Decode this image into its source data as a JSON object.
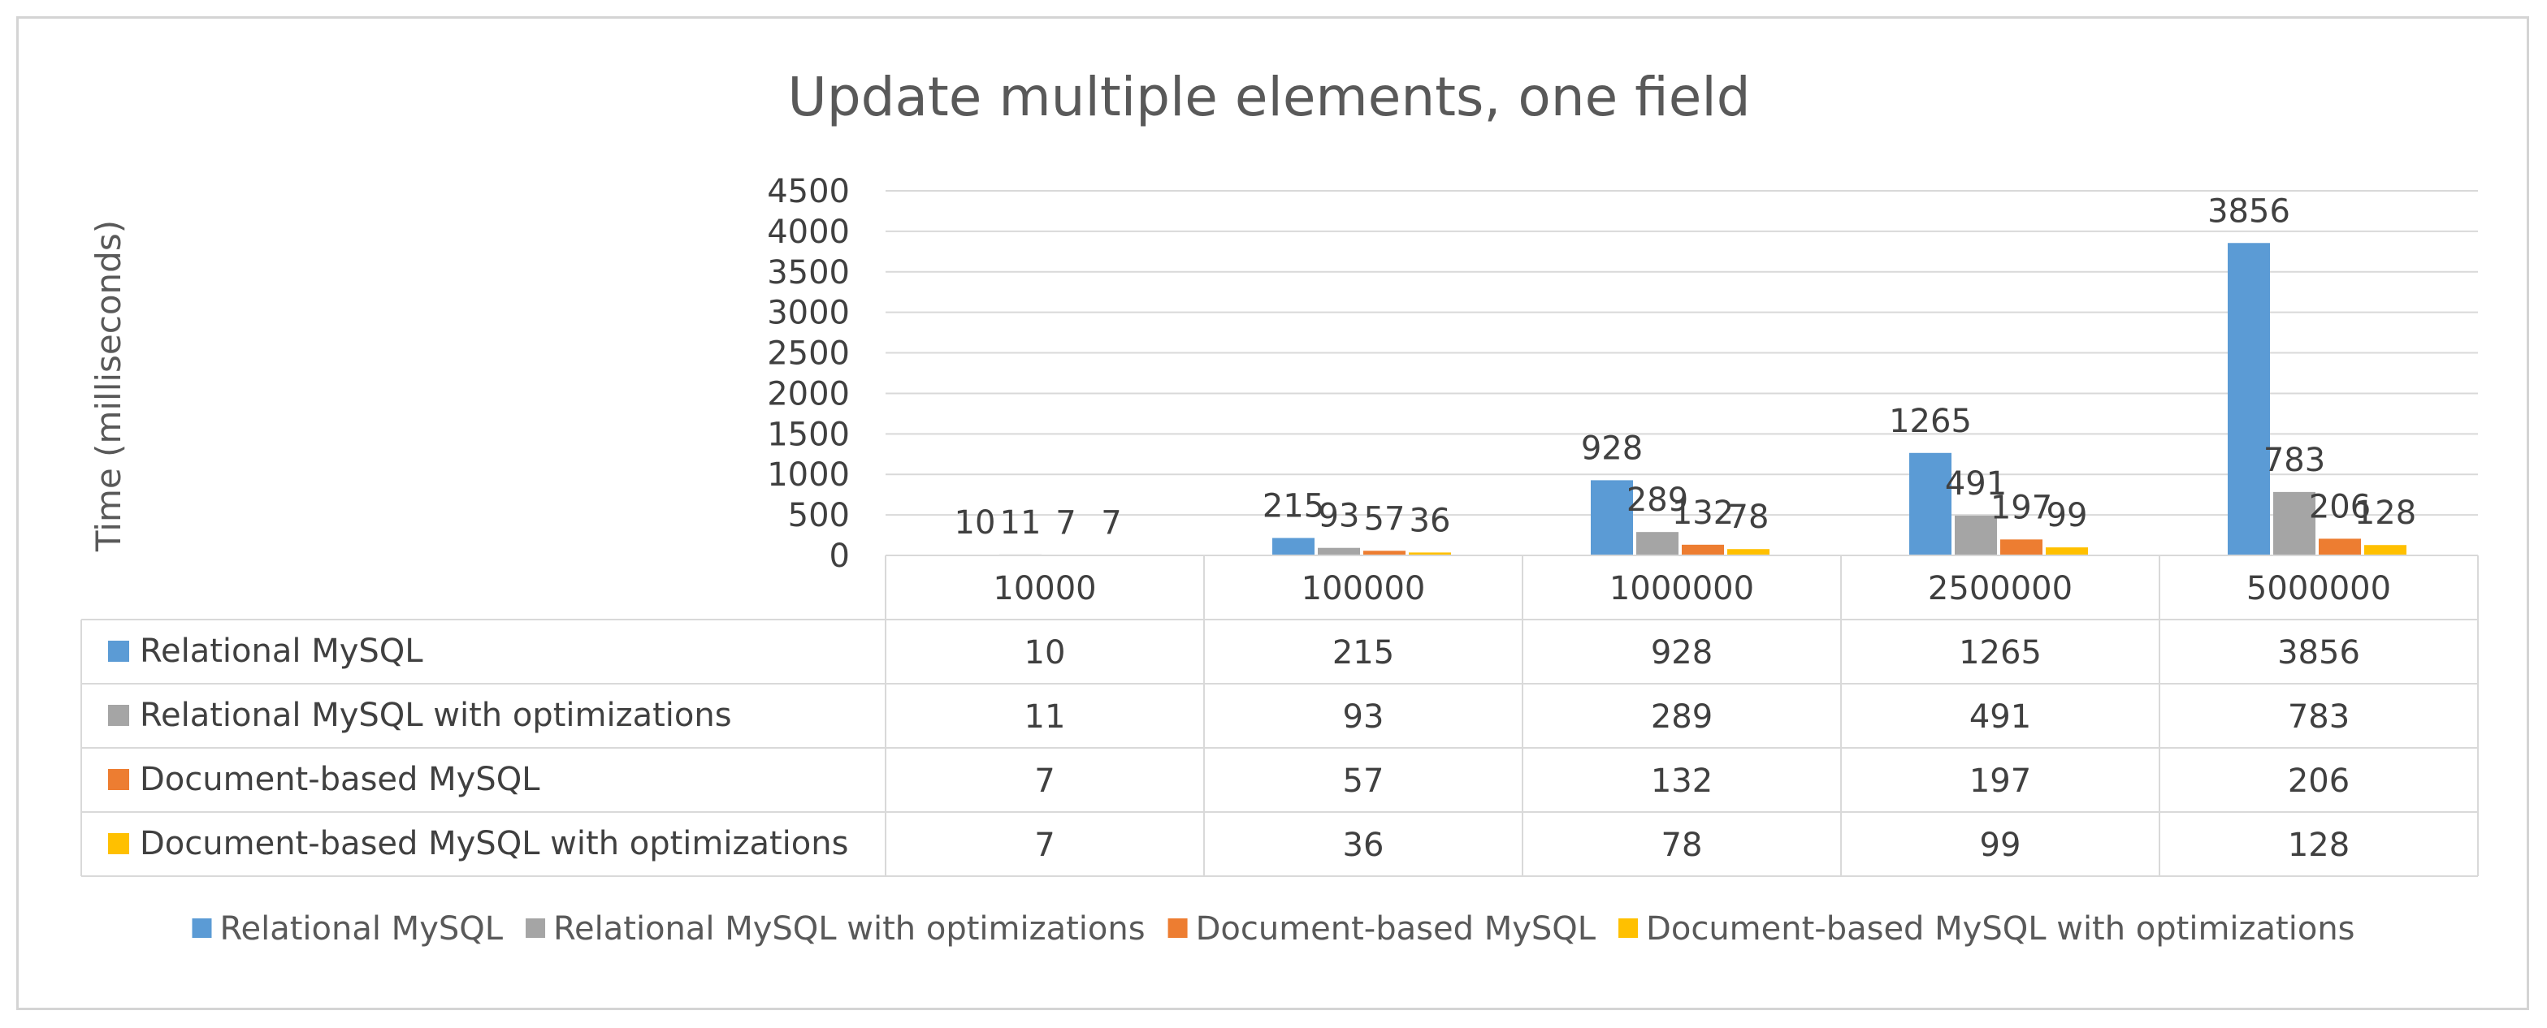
{
  "chart_data": {
    "type": "bar",
    "title": "Update multiple elements, one field",
    "ylabel": "Time (milliseconds)",
    "xlabel": "",
    "categories": [
      "10000",
      "100000",
      "1000000",
      "2500000",
      "5000000"
    ],
    "ylim": [
      0,
      4500
    ],
    "yticks": [
      0,
      500,
      1000,
      1500,
      2000,
      2500,
      3000,
      3500,
      4000,
      4500
    ],
    "grid": true,
    "legend_position": "bottom",
    "data_table": true,
    "series": [
      {
        "name": "Relational MySQL",
        "color": "#5b9bd5",
        "values": [
          10,
          215,
          928,
          1265,
          3856
        ]
      },
      {
        "name": "Relational MySQL with optimizations",
        "color": "#a5a5a5",
        "values": [
          11,
          93,
          289,
          491,
          783
        ]
      },
      {
        "name": "Document-based MySQL",
        "color": "#ed7d31",
        "values": [
          7,
          57,
          132,
          197,
          206
        ]
      },
      {
        "name": "Document-based MySQL with optimizations",
        "color": "#ffc000",
        "values": [
          7,
          36,
          78,
          99,
          128
        ]
      }
    ]
  }
}
